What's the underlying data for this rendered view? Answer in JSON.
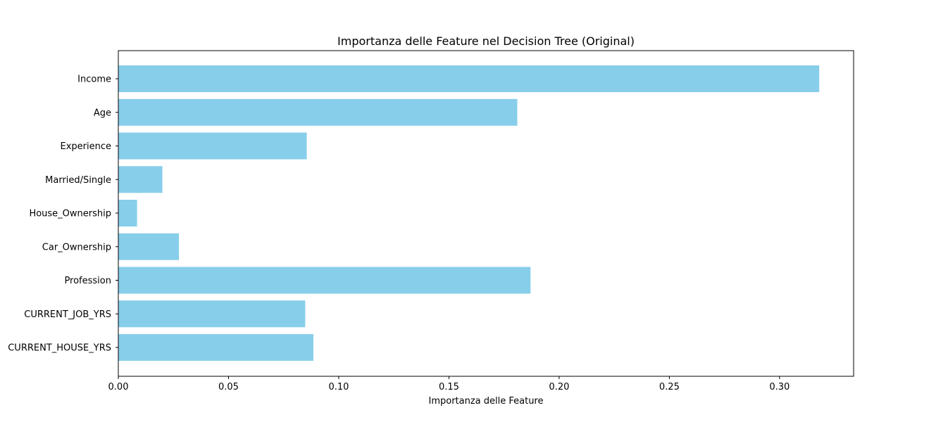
{
  "chart_data": {
    "type": "bar",
    "orientation": "horizontal",
    "title": "Importanza delle Feature nel Decision Tree (Original)",
    "xlabel": "Importanza delle Feature",
    "ylabel": "",
    "categories": [
      "Income",
      "Age",
      "Experience",
      "Married/Single",
      "House_Ownership",
      "Car_Ownership",
      "Profession",
      "CURRENT_JOB_YRS",
      "CURRENT_HOUSE_YRS"
    ],
    "values": [
      0.318,
      0.181,
      0.0855,
      0.02,
      0.0085,
      0.0275,
      0.187,
      0.0848,
      0.0885
    ],
    "xlim": [
      0.0,
      0.3336
    ],
    "xticks": [
      0.0,
      0.05,
      0.1,
      0.15,
      0.2,
      0.25,
      0.3
    ],
    "xtick_labels": [
      "0.00",
      "0.05",
      "0.10",
      "0.15",
      "0.20",
      "0.25",
      "0.30"
    ],
    "bar_color": "#87ceeb",
    "grid": false,
    "legend": "none"
  }
}
